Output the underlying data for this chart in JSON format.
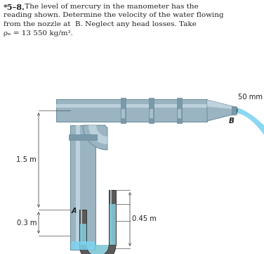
{
  "bg_color": "#ffffff",
  "pipe_color": "#9ab4c2",
  "pipe_dark": "#6a8a9a",
  "pipe_light": "#c8dce6",
  "pipe_highlight": "#ddedf5",
  "pipe_collar": "#7a9aaa",
  "manometer_dark": "#404040",
  "mercury_color": "#80c8d8",
  "water_color": "#7dd4f0",
  "dim_color": "#505050",
  "text_color": "#202020",
  "label_50mm": "50 mm",
  "label_B": "B",
  "label_A": "A",
  "label_15m": "1.5 m",
  "label_03m": "0.3 m",
  "label_045m": "0.45 m",
  "title_bold": "*5–8.",
  "title_rest": " The level of mercury in the manometer has the\nreading shown. Determine the velocity of the water flowing\nfrom the nozzle at B. Neglect any head losses. Take\nρₙ = 13 550 kg/m³."
}
